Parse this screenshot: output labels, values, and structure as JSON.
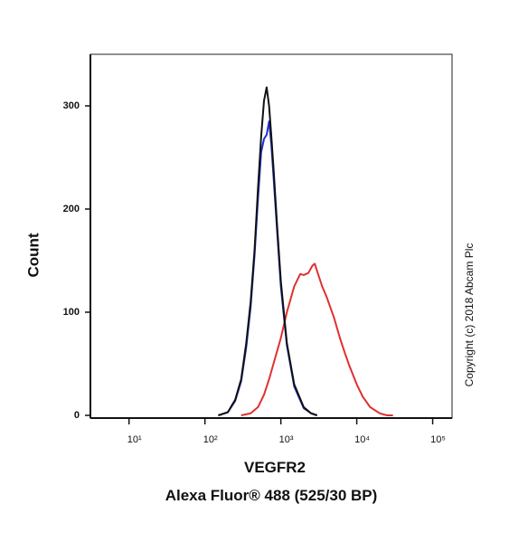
{
  "chart_data": {
    "type": "line",
    "ylabel": "Count",
    "xlabel": [
      "VEGFR2",
      "Alexa Fluor® 488 (525/30 BP)"
    ],
    "annotation": "Copyright (c) 2018 Abcam Plc",
    "xscale": "log",
    "xlim": [
      3.1,
      180000
    ],
    "ylim": [
      0,
      350
    ],
    "xticks": [
      {
        "value": 10,
        "label": "10¹"
      },
      {
        "value": 100,
        "label": "10²"
      },
      {
        "value": 1000,
        "label": "10³"
      },
      {
        "value": 10000,
        "label": "10⁴"
      },
      {
        "value": 100000,
        "label": "10⁵"
      }
    ],
    "yticks": [
      0,
      100,
      200,
      300
    ],
    "series": [
      {
        "color": "#e03030",
        "x": [
          300,
          400,
          500,
          600,
          700,
          800,
          1000,
          1200,
          1500,
          1800,
          2000,
          2300,
          2600,
          2800,
          3000,
          3500,
          4000,
          5000,
          6000,
          7000,
          8000,
          10000,
          12000,
          15000,
          20000,
          25000,
          30000
        ],
        "values": [
          0,
          2,
          8,
          20,
          35,
          50,
          75,
          100,
          125,
          137,
          136,
          138,
          145,
          147,
          140,
          125,
          115,
          95,
          75,
          60,
          48,
          30,
          18,
          8,
          2,
          0,
          0
        ]
      },
      {
        "color": "#2030d0",
        "x": [
          150,
          200,
          250,
          300,
          350,
          400,
          450,
          500,
          550,
          600,
          650,
          700,
          750,
          800,
          900,
          1000,
          1200,
          1500,
          2000,
          2500,
          3000
        ],
        "values": [
          0,
          3,
          14,
          33,
          66,
          105,
          155,
          210,
          255,
          268,
          272,
          285,
          262,
          232,
          175,
          125,
          68,
          28,
          7,
          2,
          0
        ]
      },
      {
        "color": "#111111",
        "x": [
          150,
          200,
          250,
          300,
          350,
          400,
          450,
          500,
          550,
          600,
          650,
          700,
          750,
          800,
          900,
          1000,
          1200,
          1500,
          2000,
          2500,
          3000
        ],
        "values": [
          0,
          3,
          15,
          35,
          70,
          110,
          160,
          220,
          270,
          305,
          318,
          300,
          270,
          240,
          180,
          130,
          70,
          30,
          8,
          2,
          0
        ]
      }
    ]
  }
}
